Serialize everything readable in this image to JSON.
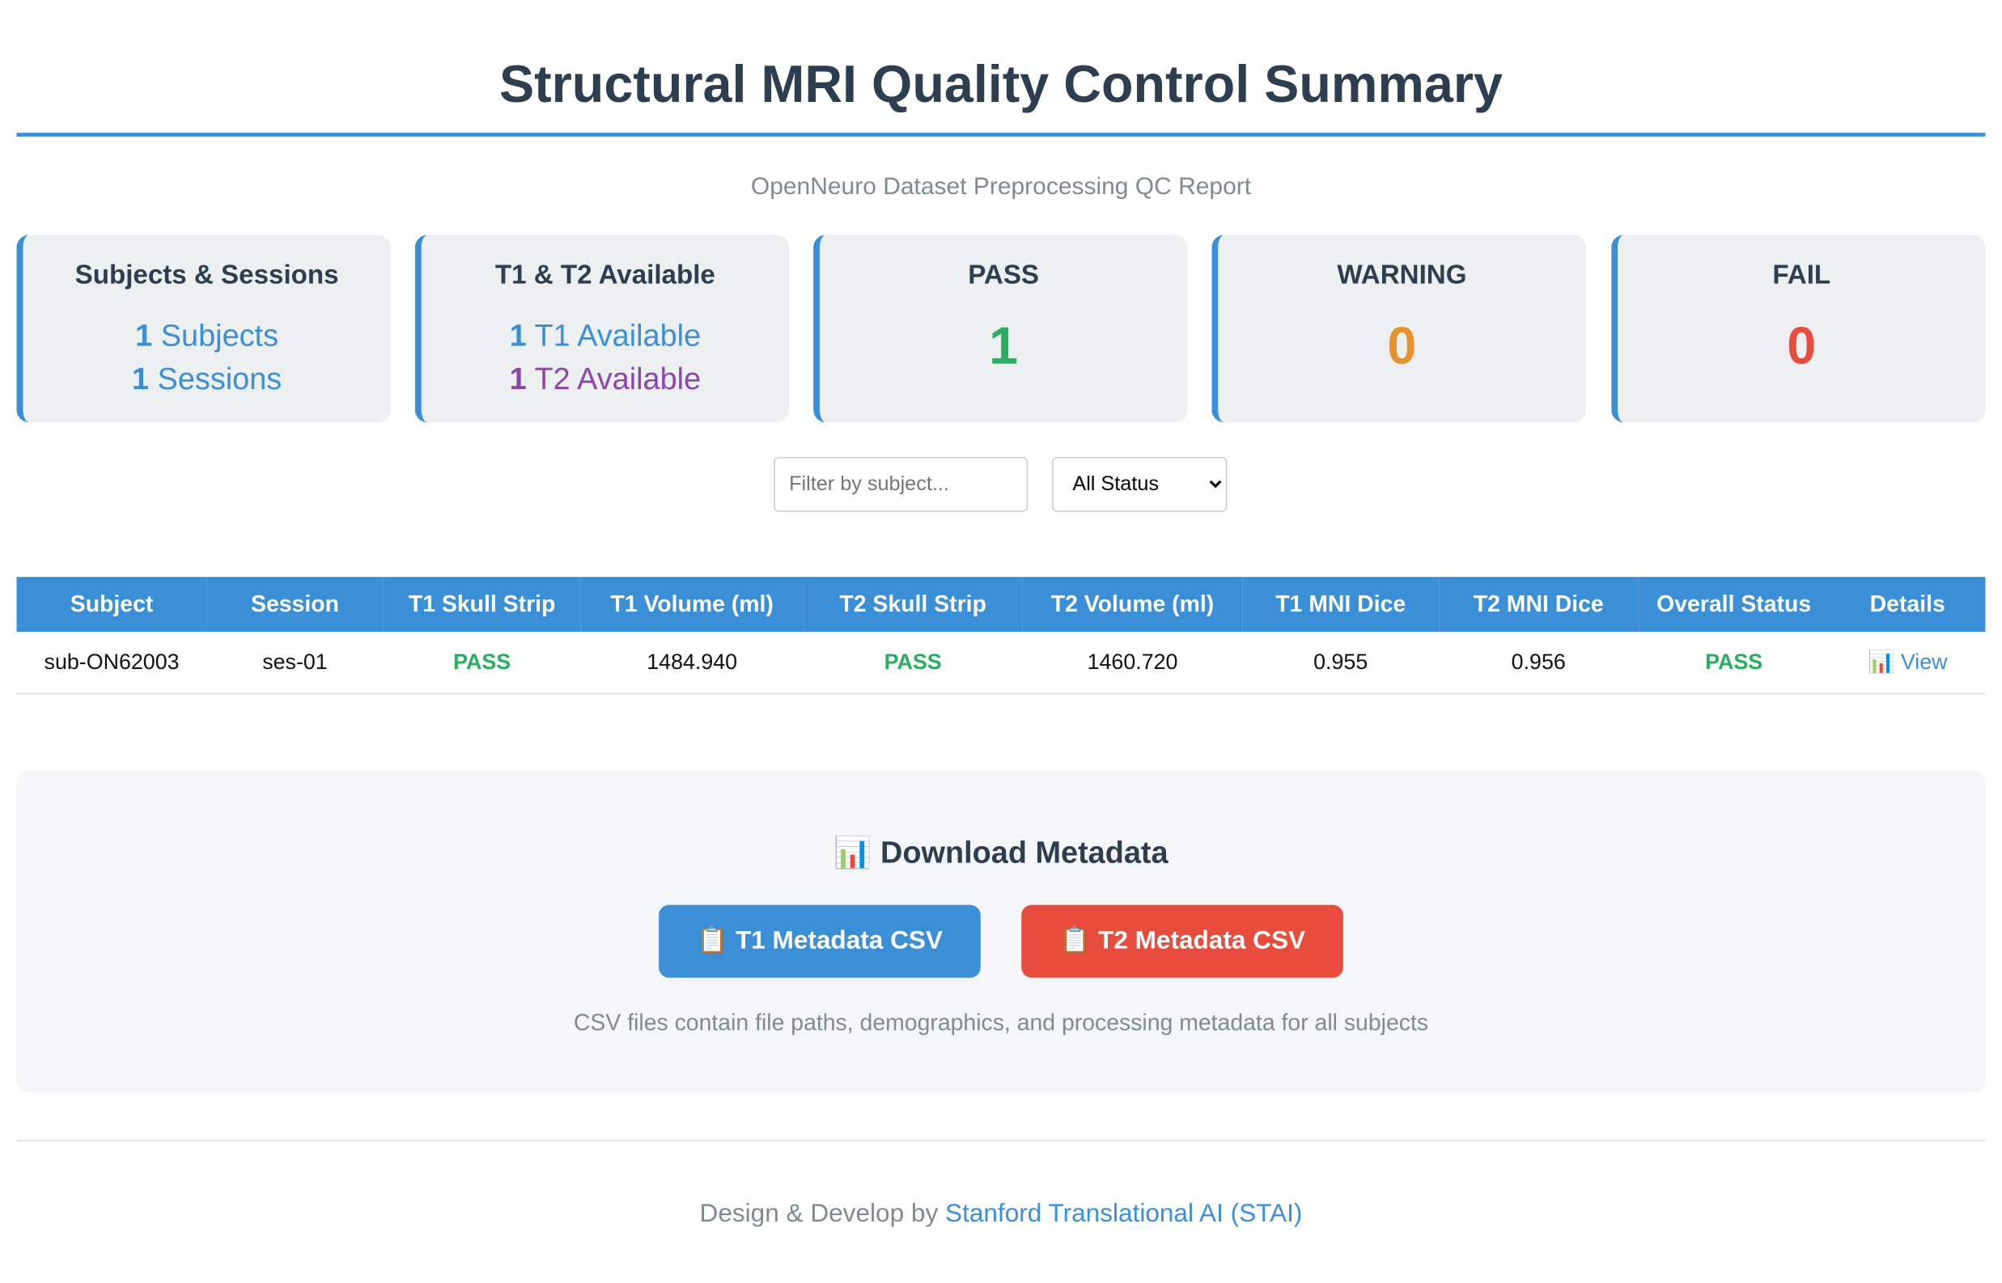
{
  "header": {
    "title": "Structural MRI Quality Control Summary",
    "subtitle": "OpenNeuro Dataset Preprocessing QC Report"
  },
  "cards": [
    {
      "title": "Subjects & Sessions",
      "lines": [
        {
          "count": 1,
          "label": "Subjects"
        },
        {
          "count": 1,
          "label": "Sessions"
        }
      ]
    },
    {
      "title": "T1 & T2 Available",
      "lines": [
        {
          "count": 1,
          "label": "T1 Available"
        },
        {
          "count": 1,
          "label": "T2 Available"
        }
      ]
    },
    {
      "title": "PASS",
      "count": 1
    },
    {
      "title": "WARNING",
      "count": 0
    },
    {
      "title": "FAIL",
      "count": 0
    }
  ],
  "filters": {
    "placeholder": "Filter by subject...",
    "status": "All Status"
  },
  "table": {
    "headers": [
      "Subject",
      "Session",
      "T1 Skull Strip",
      "T1 Volume (ml)",
      "T2 Skull Strip",
      "T2 Volume (ml)",
      "T1 MNI Dice",
      "T2 MNI Dice",
      "Overall Status",
      "Details"
    ],
    "rows": [
      [
        "sub-ON62003",
        "ses-01",
        "PASS",
        "1484.940",
        "PASS",
        "1460.720",
        "0.955",
        "0.956",
        "PASS",
        "📊 View"
      ]
    ]
  },
  "download": {
    "title": "📊 Download Metadata",
    "buttons": [
      "📋 T1 Metadata CSV",
      "📋 T2 Metadata CSV"
    ],
    "note": "CSV files contain file paths, demographics, and processing metadata for all subjects"
  },
  "footer": {
    "text": "Design & Develop by",
    "link": "Stanford Translational AI (STAI)"
  }
}
